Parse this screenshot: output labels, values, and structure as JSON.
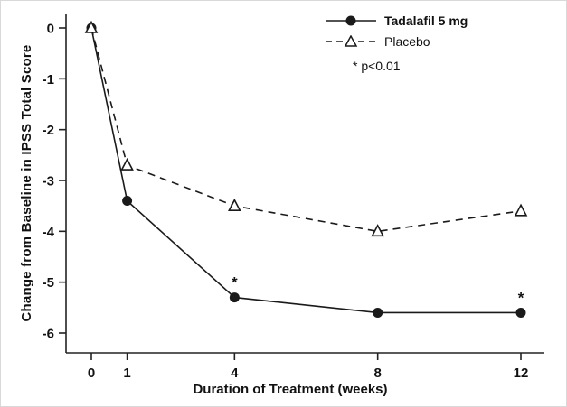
{
  "chart_data": {
    "type": "line",
    "x": [
      0,
      1,
      4,
      8,
      12
    ],
    "xticks": [
      0,
      1,
      4,
      8,
      12
    ],
    "yticks": [
      0,
      -1,
      -2,
      -3,
      -4,
      -5,
      -6
    ],
    "xlim": [
      -0.8,
      12.7
    ],
    "ylim": [
      -6.6,
      0.4
    ],
    "grid": false,
    "legend_position": "top-right",
    "xlabel": "Duration of Treatment (weeks)",
    "ylabel": "Change from Baseline in IPSS Total Score",
    "annotation": "* p<0.01",
    "series": [
      {
        "name": "Tadalafil 5 mg",
        "values": [
          0,
          -3.4,
          -5.3,
          -5.6,
          -5.6
        ],
        "marker": "filled-circle",
        "line": "solid",
        "color": "#1a1a1a",
        "annotations": [
          {
            "x": 4,
            "text": "*"
          },
          {
            "x": 12,
            "text": "*"
          }
        ]
      },
      {
        "name": "Placebo",
        "values": [
          0,
          -2.7,
          -3.5,
          -4.0,
          -3.6
        ],
        "marker": "open-triangle",
        "line": "dashed",
        "color": "#1a1a1a",
        "annotations": []
      }
    ]
  }
}
